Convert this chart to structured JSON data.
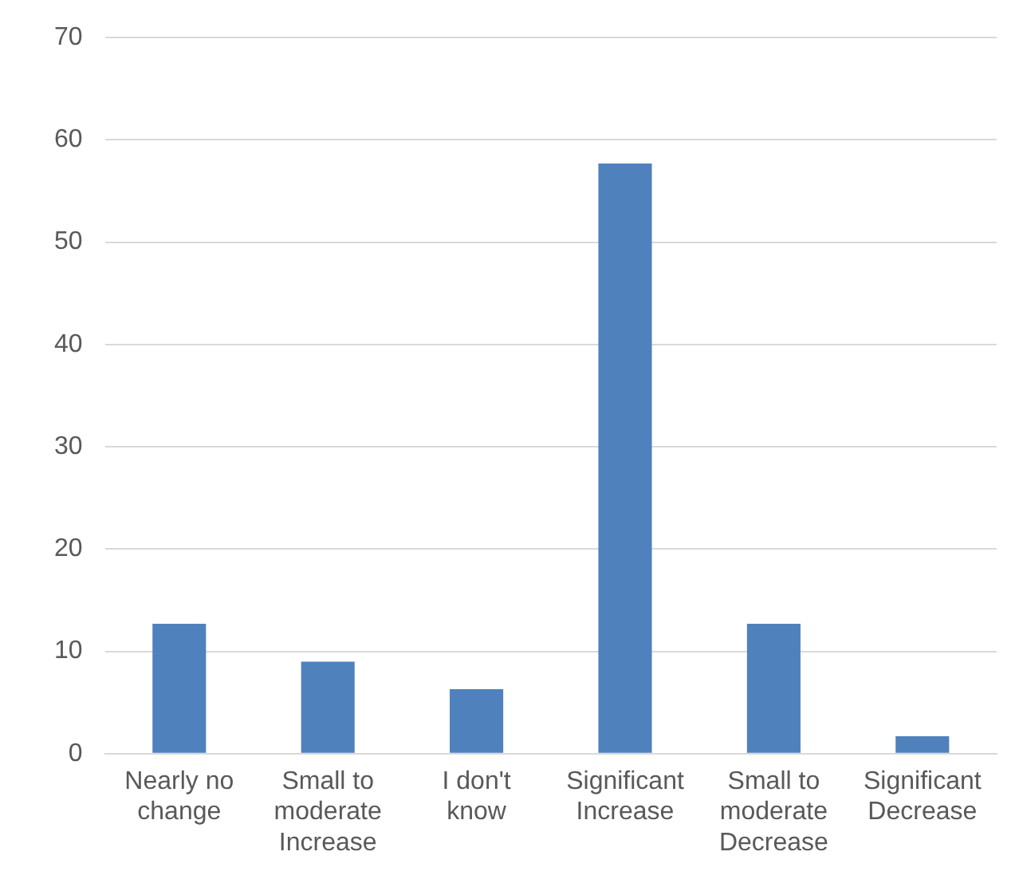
{
  "chart_data": {
    "type": "bar",
    "categories": [
      "Nearly no change",
      "Small to moderate Increase",
      "I don't know",
      "Significant Increase",
      "Small to moderate Decrease",
      "Significant Decrease"
    ],
    "values": [
      12.7,
      9,
      6.3,
      57.7,
      12.7,
      1.7
    ],
    "color": "#4f81bd",
    "ylim": [
      0,
      70
    ],
    "yticks": [
      0,
      10,
      20,
      30,
      40,
      50,
      60,
      70
    ],
    "grid": "y"
  }
}
